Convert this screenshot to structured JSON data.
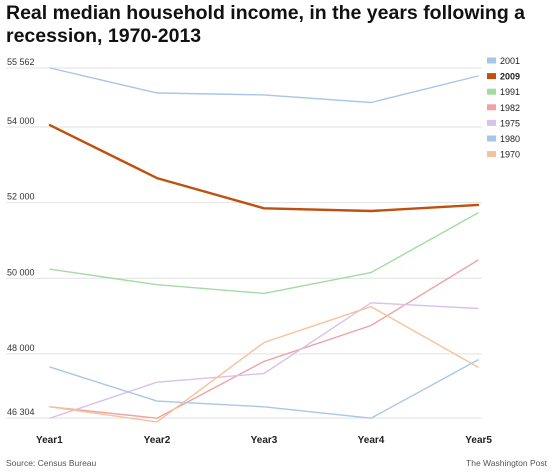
{
  "chart_data": {
    "type": "line",
    "title": "Real median household income, in the years following a recession, 1970-2013",
    "categories": [
      "Year1",
      "Year2",
      "Year3",
      "Year4",
      "Year5"
    ],
    "y_ticks": [
      {
        "value": 55562,
        "label": "55 562"
      },
      {
        "value": 54000,
        "label": "54 000"
      },
      {
        "value": 52000,
        "label": "52 000"
      },
      {
        "value": 50000,
        "label": "50 000"
      },
      {
        "value": 48000,
        "label": "48 000"
      },
      {
        "value": 46304,
        "label": "46 304"
      }
    ],
    "ylim": [
      46304,
      55562
    ],
    "grid": true,
    "legend_position": "right",
    "series": [
      {
        "name": "2001",
        "color": "#a6c8e6",
        "bold": false,
        "values": [
          55562,
          54900,
          54850,
          54650,
          55350
        ]
      },
      {
        "name": "2009",
        "color": "#c0500f",
        "bold": true,
        "values": [
          54050,
          52650,
          51850,
          51780,
          51940
        ]
      },
      {
        "name": "1991",
        "color": "#a3dca0",
        "bold": false,
        "values": [
          50240,
          49830,
          49600,
          50150,
          51730
        ]
      },
      {
        "name": "1982",
        "color": "#f0a3a3",
        "bold": false,
        "values": [
          46600,
          46300,
          47800,
          48750,
          50480
        ]
      },
      {
        "name": "1975",
        "color": "#d9c2ea",
        "bold": false,
        "values": [
          46300,
          47250,
          47480,
          49350,
          49200
        ]
      },
      {
        "name": "1980",
        "color": "#a6c8e6",
        "bold": false,
        "values": [
          47650,
          46750,
          46600,
          46300,
          47840
        ]
      },
      {
        "name": "1970",
        "color": "#f5c199",
        "bold": false,
        "values": [
          46600,
          46200,
          48300,
          49250,
          47650
        ]
      }
    ]
  },
  "footer": {
    "source": "Source: Census Bureau",
    "credit": "The Washington Post"
  }
}
